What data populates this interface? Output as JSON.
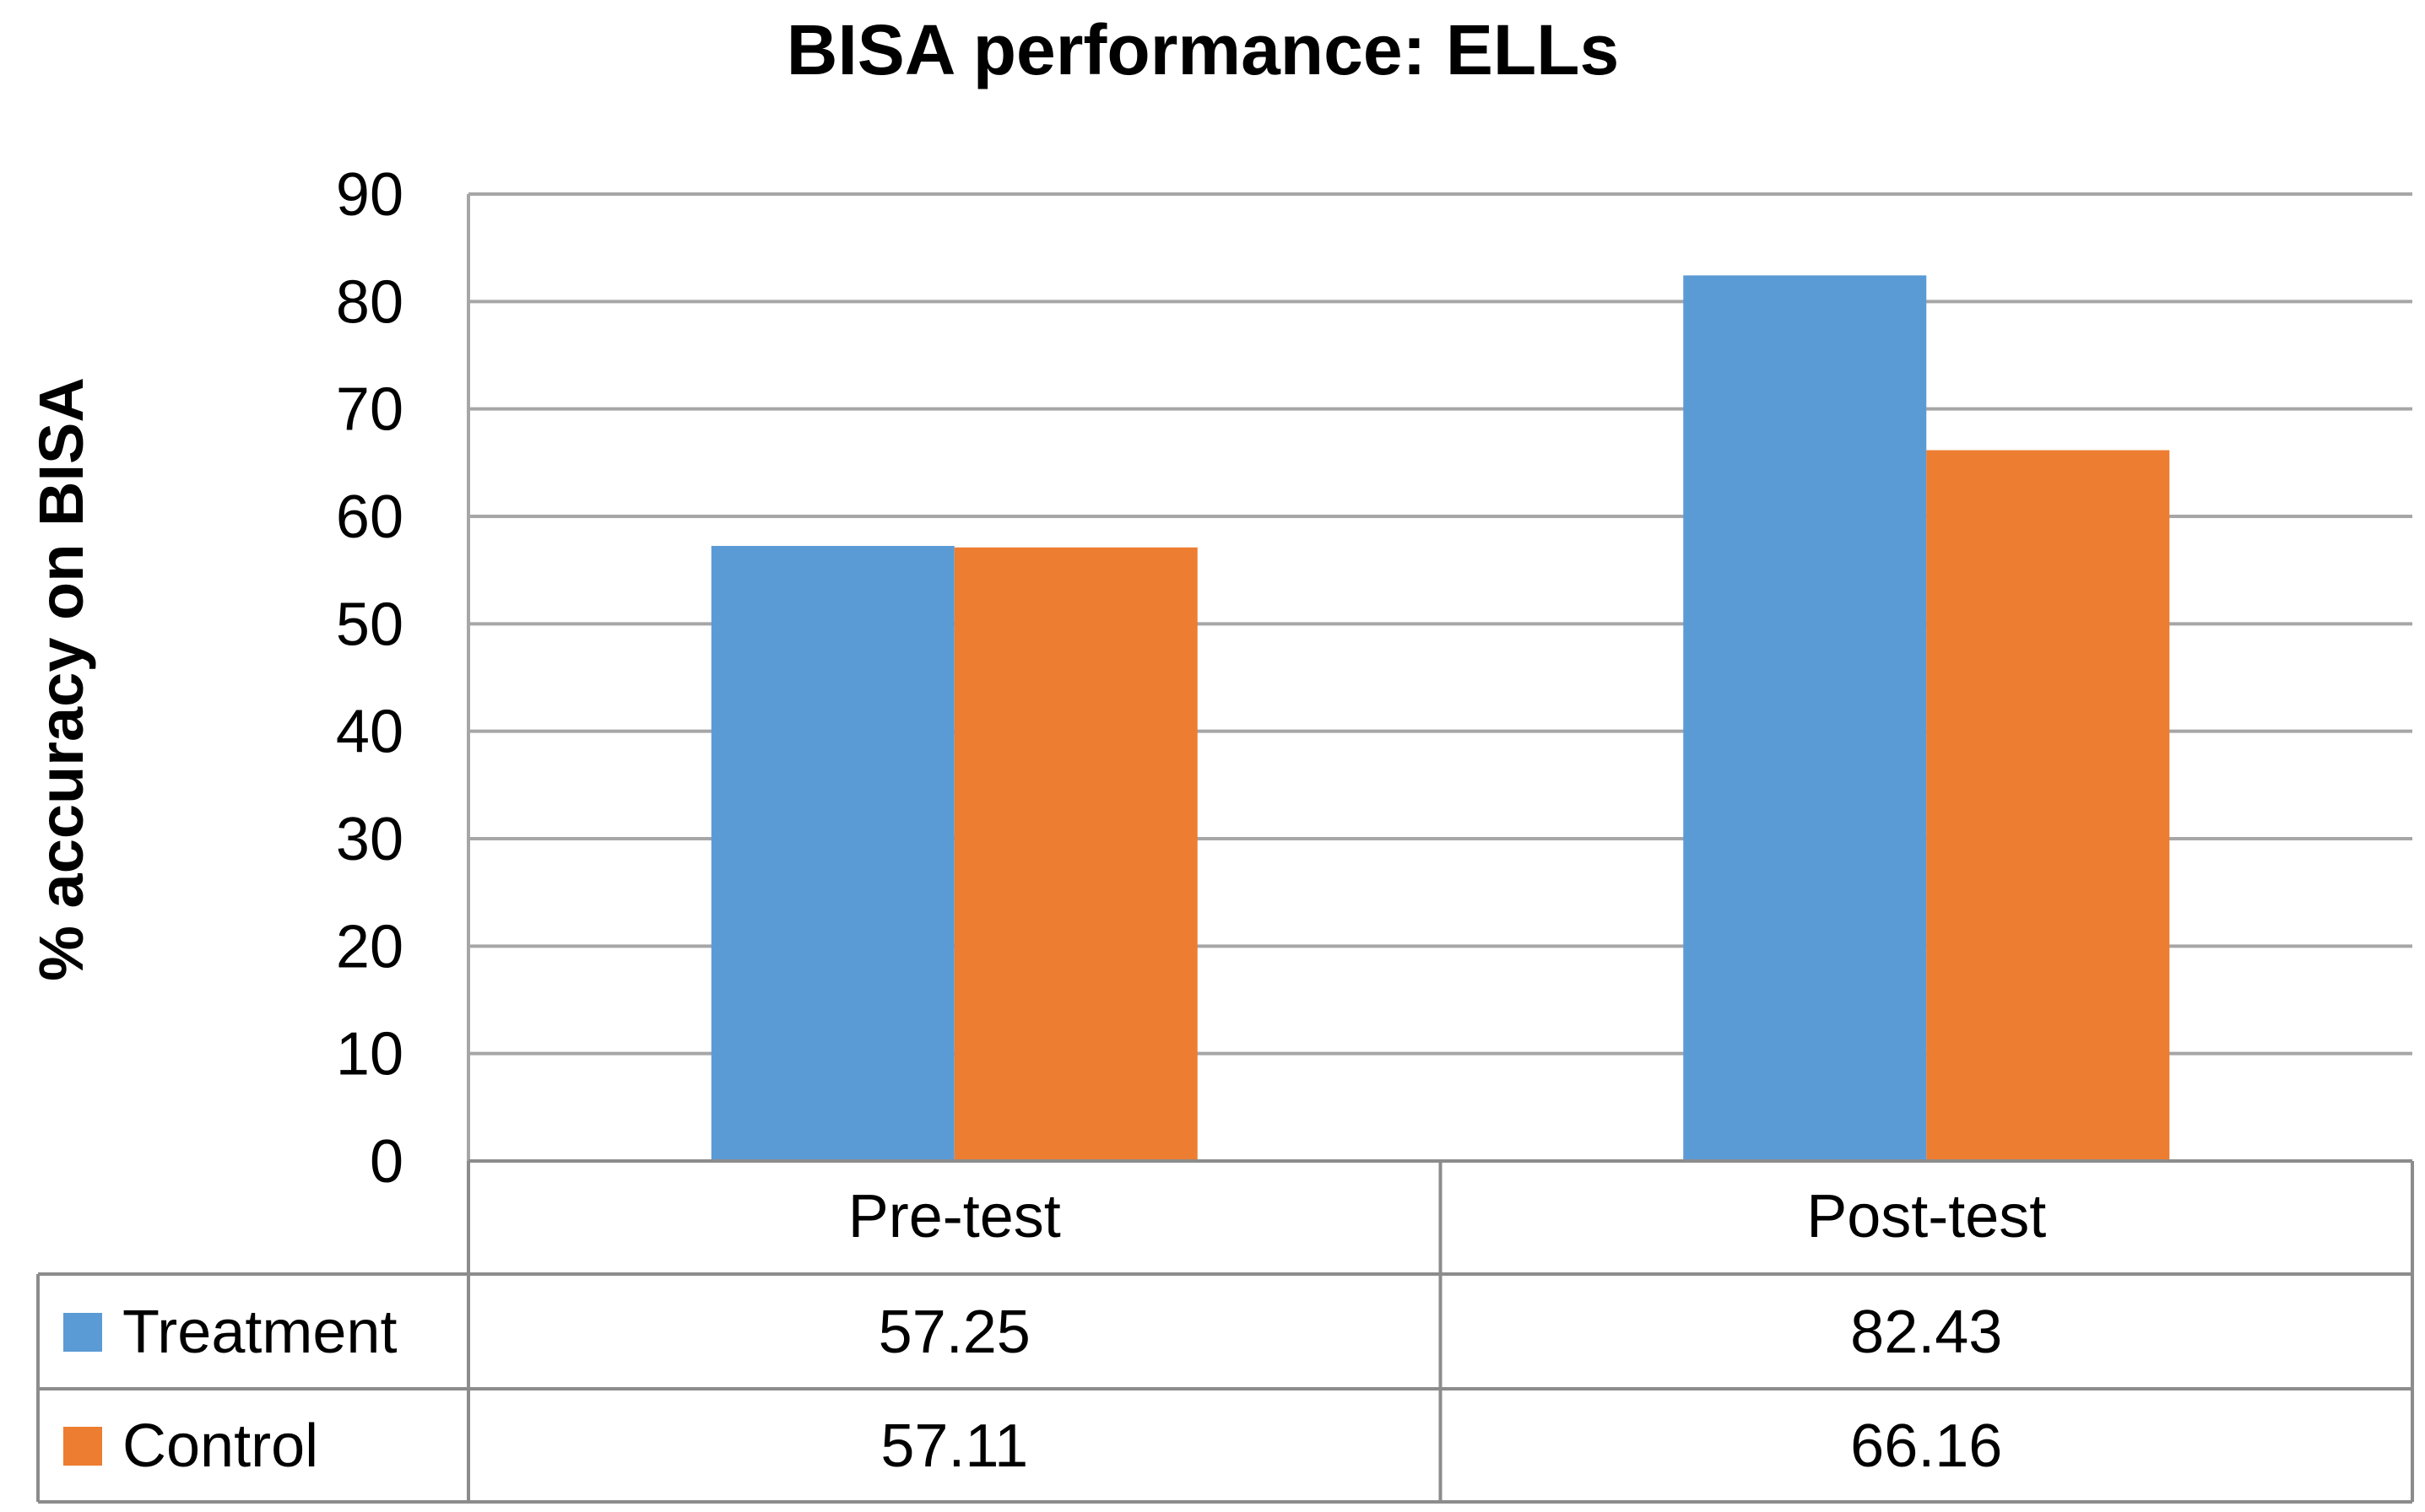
{
  "chart_data": {
    "type": "bar",
    "title": "BISA performance: ELLs",
    "xlabel": "",
    "ylabel": "% accuracy on BISA",
    "ylim": [
      0,
      90
    ],
    "yticks": [
      0,
      10,
      20,
      30,
      40,
      50,
      60,
      70,
      80,
      90
    ],
    "categories": [
      "Pre-test",
      "Post-test"
    ],
    "series": [
      {
        "name": "Treatment",
        "values": [
          57.25,
          82.43
        ],
        "labels": [
          "57.25",
          "82.43"
        ],
        "color": "#5b9bd5"
      },
      {
        "name": "Control",
        "values": [
          57.11,
          66.16
        ],
        "labels": [
          "57.11",
          "66.16"
        ],
        "color": "#ed7d31"
      }
    ],
    "grid": true,
    "legend": "data-table"
  }
}
